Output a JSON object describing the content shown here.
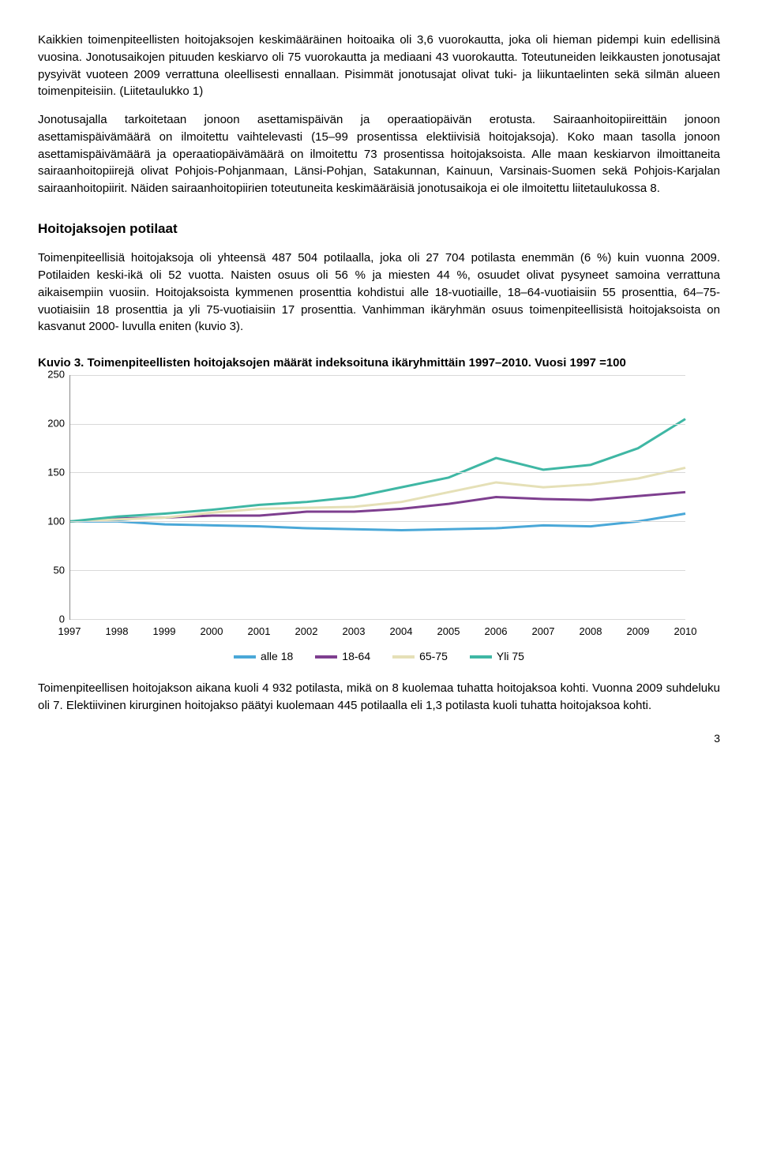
{
  "para1": "Kaikkien toimenpiteellisten hoitojaksojen keskimääräinen hoitoaika oli 3,6 vuorokautta, joka oli hieman pidempi kuin edellisinä vuosina. Jonotusaikojen pituuden keskiarvo oli 75 vuorokautta ja mediaani 43 vuorokautta. Toteutuneiden leikkausten jonotusajat pysyivät vuoteen 2009 verrattuna oleellisesti ennallaan. Pisimmät jonotusajat olivat tuki- ja liikuntaelinten sekä silmän alueen toimenpiteisiin. (Liitetaulukko 1)",
  "para2": "Jonotusajalla tarkoitetaan jonoon asettamispäivän ja operaatiopäivän erotusta. Sairaanhoitopiireittäin jonoon asettamispäivämäärä on ilmoitettu vaihtelevasti (15–99 prosentissa elektiivisiä hoitojaksoja). Koko maan tasolla jonoon asettamispäivämäärä ja operaatiopäivämäärä on ilmoitettu 73 prosentissa hoitojaksoista. Alle maan keskiarvon ilmoittaneita sairaanhoitopiirejä olivat Pohjois-Pohjanmaan, Länsi-Pohjan, Satakunnan, Kainuun, Varsinais-Suomen sekä Pohjois-Karjalan sairaanhoitopiirit. Näiden sairaanhoitopiirien toteutuneita keskimääräisiä jonotusaikoja ei ole ilmoitettu liitetaulukossa 8.",
  "section_title": "Hoitojaksojen potilaat",
  "para3": "Toimenpiteellisiä hoitojaksoja oli yhteensä 487 504 potilaalla, joka oli 27 704 potilasta enemmän (6 %) kuin vuonna 2009. Potilaiden keski-ikä oli 52 vuotta. Naisten osuus oli 56 % ja miesten 44 %, osuudet olivat pysyneet samoina verrattuna aikaisempiin vuosiin. Hoitojaksoista kymmenen prosenttia kohdistui alle 18-vuotiaille, 18–64-vuotiaisiin 55 prosenttia, 64–75-vuotiaisiin 18 prosenttia ja yli 75-vuotiaisiin 17 prosenttia. Vanhimman ikäryhmän osuus toimenpiteellisistä hoitojaksoista on kasvanut 2000- luvulla eniten (kuvio 3).",
  "chart": {
    "title": "Kuvio 3. Toimenpiteellisten hoitojaksojen määrät indeksoituna ikäryhmittäin 1997–2010. Vuosi 1997 =100",
    "ylim": [
      0,
      250
    ],
    "yticks": [
      0,
      50,
      100,
      150,
      200,
      250
    ],
    "years": [
      "1997",
      "1998",
      "1999",
      "2000",
      "2001",
      "2002",
      "2003",
      "2004",
      "2005",
      "2006",
      "2007",
      "2008",
      "2009",
      "2010"
    ],
    "series": [
      {
        "name": "alle 18",
        "color": "#4aa8d8",
        "values": [
          100,
          100,
          97,
          96,
          95,
          93,
          92,
          91,
          92,
          93,
          96,
          95,
          100,
          108
        ]
      },
      {
        "name": "18-64",
        "color": "#7e3f8f",
        "values": [
          100,
          103,
          104,
          106,
          106,
          110,
          110,
          113,
          118,
          125,
          123,
          122,
          126,
          130
        ]
      },
      {
        "name": "65-75",
        "color": "#e5e0b7",
        "values": [
          100,
          102,
          104,
          109,
          113,
          114,
          115,
          120,
          130,
          140,
          135,
          138,
          144,
          155
        ]
      },
      {
        "name": "Yli 75",
        "color": "#3fb7a4",
        "values": [
          100,
          105,
          108,
          112,
          117,
          120,
          125,
          135,
          145,
          165,
          153,
          158,
          175,
          205
        ]
      }
    ],
    "line_width": 3,
    "grid_color": "#d9d9d9",
    "axis_color": "#888888",
    "label_fontsize": 13
  },
  "para4": "Toimenpiteellisen hoitojakson aikana kuoli 4 932 potilasta, mikä on 8 kuolemaa tuhatta hoitojaksoa kohti. Vuonna 2009 suhdeluku oli 7. Elektiivinen kirurginen hoitojakso päätyi kuolemaan 445 potilaalla eli 1,3 potilasta kuoli tuhatta hoitojaksoa kohti.",
  "page_number": "3"
}
